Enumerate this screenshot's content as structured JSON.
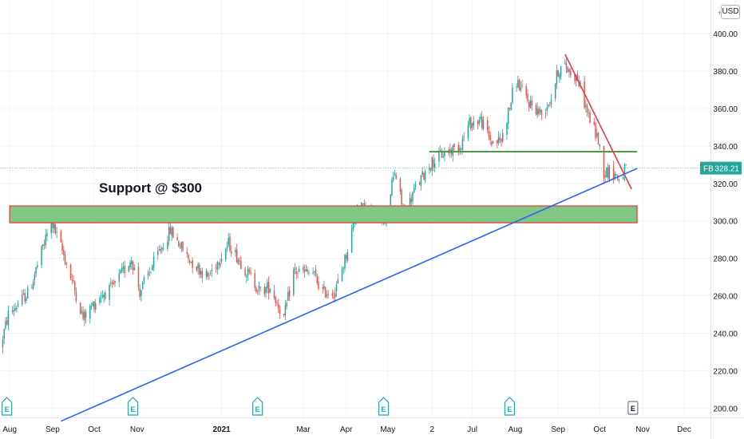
{
  "chart_data": {
    "type": "candlestick",
    "title": "",
    "currency": "USD",
    "annotation": "Support @ $300",
    "y_ticks": [
      200,
      220,
      240,
      260,
      280,
      300,
      320,
      340,
      360,
      380,
      400
    ],
    "y_tick_labels": [
      "200.00",
      "220.00",
      "240.00",
      "260.00",
      "280.00",
      "300.00",
      "320.00",
      "340.00",
      "360.00",
      "380.00",
      "400.00"
    ],
    "ylim": [
      195,
      418
    ],
    "x_range": [
      "2020-07-25",
      "2021-12-20"
    ],
    "x_ticks": [
      {
        "date": "2020-08-01",
        "label": "Aug",
        "bold": false
      },
      {
        "date": "2020-09-01",
        "label": "Sep",
        "bold": false
      },
      {
        "date": "2020-10-01",
        "label": "Oct",
        "bold": false
      },
      {
        "date": "2020-11-01",
        "label": "Nov",
        "bold": false
      },
      {
        "date": "2021-01-01",
        "label": "2021",
        "bold": true
      },
      {
        "date": "2021-03-01",
        "label": "Mar",
        "bold": false
      },
      {
        "date": "2021-04-01",
        "label": "Apr",
        "bold": false
      },
      {
        "date": "2021-05-01",
        "label": "May",
        "bold": false
      },
      {
        "date": "2021-06-02",
        "label": "2",
        "bold": false
      },
      {
        "date": "2021-07-01",
        "label": "Jul",
        "bold": false
      },
      {
        "date": "2021-08-01",
        "label": "Aug",
        "bold": false
      },
      {
        "date": "2021-09-01",
        "label": "Sep",
        "bold": false
      },
      {
        "date": "2021-10-01",
        "label": "Oct",
        "bold": false
      },
      {
        "date": "2021-11-01",
        "label": "Nov",
        "bold": false
      },
      {
        "date": "2021-12-01",
        "label": "Dec",
        "bold": false
      }
    ],
    "price_anchors": [
      [
        "2020-07-25",
        232
      ],
      [
        "2020-07-31",
        250
      ],
      [
        "2020-08-15",
        262
      ],
      [
        "2020-08-31",
        300
      ],
      [
        "2020-09-08",
        284
      ],
      [
        "2020-09-15",
        268
      ],
      [
        "2020-09-23",
        248
      ],
      [
        "2020-10-05",
        260
      ],
      [
        "2020-10-14",
        264
      ],
      [
        "2020-10-28",
        280
      ],
      [
        "2020-11-03",
        262
      ],
      [
        "2020-11-12",
        276
      ],
      [
        "2020-11-25",
        295
      ],
      [
        "2020-12-08",
        280
      ],
      [
        "2020-12-22",
        270
      ],
      [
        "2021-01-06",
        288
      ],
      [
        "2021-01-20",
        272
      ],
      [
        "2021-01-29",
        262
      ],
      [
        "2021-02-05",
        265
      ],
      [
        "2021-02-15",
        248
      ],
      [
        "2021-02-22",
        273
      ],
      [
        "2021-03-08",
        272
      ],
      [
        "2021-03-15",
        262
      ],
      [
        "2021-03-24",
        262
      ],
      [
        "2021-04-01",
        282
      ],
      [
        "2021-04-09",
        308
      ],
      [
        "2021-04-20",
        304
      ],
      [
        "2021-04-29",
        302
      ],
      [
        "2021-05-06",
        326
      ],
      [
        "2021-05-13",
        303
      ],
      [
        "2021-05-20",
        316
      ],
      [
        "2021-05-31",
        330
      ],
      [
        "2021-06-10",
        336
      ],
      [
        "2021-06-22",
        340
      ],
      [
        "2021-06-29",
        352
      ],
      [
        "2021-07-07",
        354
      ],
      [
        "2021-07-15",
        342
      ],
      [
        "2021-07-22",
        343
      ],
      [
        "2021-07-29",
        364
      ],
      [
        "2021-08-01",
        376
      ],
      [
        "2021-08-10",
        364
      ],
      [
        "2021-08-20",
        357
      ],
      [
        "2021-08-27",
        366
      ],
      [
        "2021-09-01",
        380
      ],
      [
        "2021-09-05",
        383
      ],
      [
        "2021-09-15",
        376
      ],
      [
        "2021-09-23",
        356
      ],
      [
        "2021-09-30",
        343
      ],
      [
        "2021-10-04",
        326
      ],
      [
        "2021-10-10",
        327
      ],
      [
        "2021-10-15",
        322
      ],
      [
        "2021-10-20",
        328
      ]
    ],
    "last_price": "328.21",
    "symbol": "FB",
    "drawings": {
      "support_zone": {
        "start": "2020-08-01",
        "end": "2021-10-28",
        "top": 308,
        "bottom": 299,
        "fill": "#81c784",
        "border": "#e53935"
      },
      "horizontal_line": {
        "start": "2021-05-31",
        "end": "2021-10-28",
        "price": 337,
        "color": "#43a047"
      },
      "blue_trendline": {
        "start": [
          "2020-09-07",
          193
        ],
        "end": [
          "2021-10-28",
          328
        ],
        "color": "#2962ff"
      },
      "red_trendline": {
        "start": [
          "2021-09-06",
          389
        ],
        "end": [
          "2021-10-24",
          317
        ],
        "color": "#f23645"
      }
    },
    "earnings_markers": [
      {
        "date": "2020-07-30",
        "label": "E"
      },
      {
        "date": "2020-10-29",
        "label": "E"
      },
      {
        "date": "2021-01-27",
        "label": "E"
      },
      {
        "date": "2021-04-28",
        "label": "E"
      },
      {
        "date": "2021-07-28",
        "label": "E"
      },
      {
        "date": "2021-10-25",
        "label": "E",
        "upcoming": true
      }
    ],
    "colors": {
      "up": "#26a69a",
      "down": "#ef5350",
      "grid": "#f0f3fa",
      "text": "#131722",
      "axis_text": "#131722"
    }
  }
}
